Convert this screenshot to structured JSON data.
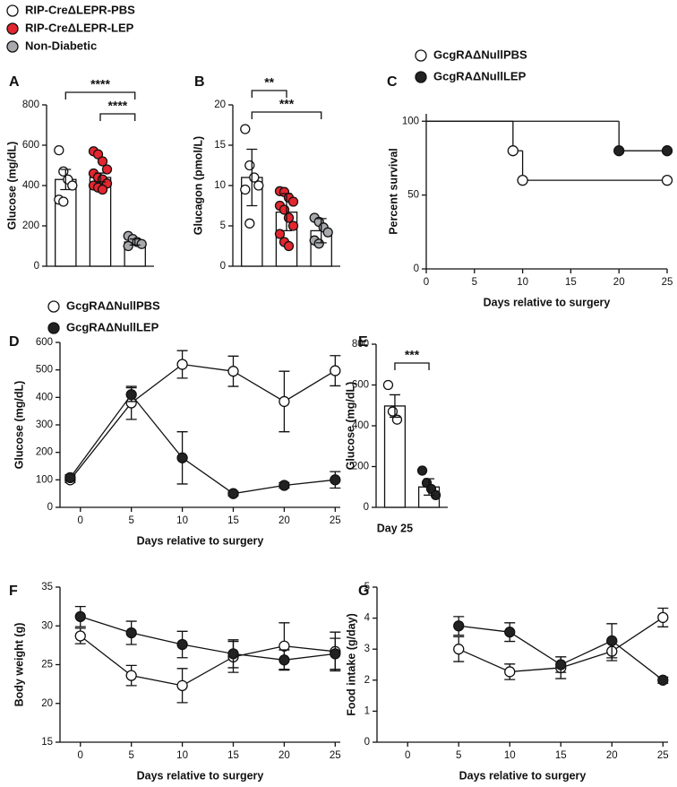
{
  "chart_data": [
    {
      "type": "bar",
      "panel": "A",
      "ylabel": "Glucose (mg/dL)",
      "ylim": [
        0,
        800
      ],
      "yticks": [
        0,
        200,
        400,
        600,
        800
      ],
      "series": [
        {
          "name": "RIP-CreΔLEPR-PBS",
          "color": "#ffffff",
          "values": [
            430
          ],
          "errors": [
            50
          ],
          "points": [
            575,
            470,
            430,
            400,
            330,
            320
          ]
        },
        {
          "name": "RIP-CreΔLEPR-LEP",
          "color": "#e3262f",
          "values": [
            440
          ],
          "errors": [
            22
          ],
          "points": [
            570,
            555,
            520,
            480,
            460,
            440,
            430,
            410,
            400,
            390,
            380
          ]
        },
        {
          "name": "Non-Diabetic",
          "color": "#a7a9ac",
          "values": [
            120
          ],
          "errors": [
            15
          ],
          "points": [
            150,
            135,
            120,
            110,
            100
          ]
        }
      ],
      "annotations": [
        {
          "text": "****",
          "from": 0,
          "to": 2
        },
        {
          "text": "****",
          "from": 1,
          "to": 2
        }
      ]
    },
    {
      "type": "bar",
      "panel": "B",
      "ylabel": "Glucagon (pmol/L)",
      "ylim": [
        0,
        20
      ],
      "yticks": [
        0,
        5,
        10,
        15,
        20
      ],
      "series": [
        {
          "color": "#ffffff",
          "values": [
            11
          ],
          "errors": [
            3.5
          ],
          "points": [
            17,
            12.5,
            11,
            10,
            9.5,
            5.3
          ]
        },
        {
          "color": "#e3262f",
          "values": [
            6.7
          ],
          "errors": [
            2.3
          ],
          "points": [
            9.3,
            9.2,
            8.5,
            8,
            7.5,
            7,
            6,
            5,
            4,
            3,
            2.5
          ]
        },
        {
          "color": "#a7a9ac",
          "values": [
            4.4
          ],
          "errors": [
            1.5
          ],
          "points": [
            6,
            5.5,
            4.8,
            4.2,
            3.2,
            2.8
          ]
        }
      ],
      "annotations": [
        {
          "text": "**",
          "from": 0,
          "to": 1
        },
        {
          "text": "***",
          "from": 0,
          "to": 2
        }
      ]
    },
    {
      "type": "step",
      "panel": "C",
      "xlabel": "Days relative to surgery",
      "ylabel": "Percent survival",
      "xlim": [
        0,
        25
      ],
      "xticks": [
        0,
        5,
        10,
        15,
        20,
        25
      ],
      "ylim": [
        0,
        105
      ],
      "yticks": [
        0,
        50,
        100
      ],
      "series": [
        {
          "name": "GcgRAΔNullPBS",
          "color": "#ffffff",
          "x": [
            0,
            9,
            10,
            25
          ],
          "values": [
            100,
            80,
            60,
            60
          ]
        },
        {
          "name": "GcgRAΔNullLEP",
          "color": "#222222",
          "x": [
            0,
            20,
            25
          ],
          "values": [
            100,
            80,
            80
          ]
        }
      ]
    },
    {
      "type": "line",
      "panel": "D",
      "xlabel": "Days relative to surgery",
      "ylabel": "Glucose (mg/dL)",
      "xlim": [
        -2,
        25.5
      ],
      "xticks": [
        0,
        5,
        10,
        15,
        20,
        25
      ],
      "ylim": [
        0,
        600
      ],
      "yticks": [
        0,
        100,
        200,
        300,
        400,
        500,
        600
      ],
      "series": [
        {
          "name": "GcgRAΔNullPBS",
          "color": "#ffffff",
          "x": [
            -1,
            5,
            10,
            15,
            20,
            25
          ],
          "values": [
            100,
            380,
            520,
            495,
            385,
            497
          ],
          "errors": [
            10,
            60,
            50,
            55,
            110,
            55
          ]
        },
        {
          "name": "GcgRAΔNullLEP",
          "color": "#222222",
          "x": [
            -1,
            5,
            10,
            15,
            20,
            25
          ],
          "values": [
            108,
            410,
            180,
            50,
            80,
            100
          ],
          "errors": [
            10,
            25,
            95,
            8,
            10,
            30
          ]
        }
      ]
    },
    {
      "type": "bar",
      "panel": "E",
      "xlabel": "Day 25",
      "ylabel": "Glucose (mg/dL)",
      "ylim": [
        0,
        800
      ],
      "yticks": [
        0,
        200,
        400,
        600,
        800
      ],
      "series": [
        {
          "color": "#ffffff",
          "values": [
            497
          ],
          "errors": [
            55
          ],
          "points": [
            600,
            470,
            430
          ]
        },
        {
          "color": "#222222",
          "values": [
            100
          ],
          "errors": [
            40
          ],
          "points": [
            180,
            120,
            90,
            60
          ]
        }
      ],
      "annotations": [
        {
          "text": "***",
          "from": 0,
          "to": 1
        }
      ]
    },
    {
      "type": "line",
      "panel": "F",
      "xlabel": "Days relative to surgery",
      "ylabel": "Body weight (g)",
      "xlim": [
        -2,
        25.5
      ],
      "xticks": [
        0,
        5,
        10,
        15,
        20,
        25
      ],
      "ylim": [
        15,
        35
      ],
      "yticks": [
        15,
        20,
        25,
        30,
        35
      ],
      "series": [
        {
          "color": "#ffffff",
          "x": [
            0,
            5,
            10,
            15,
            20,
            25
          ],
          "values": [
            28.7,
            23.6,
            22.3,
            26.0,
            27.4,
            26.7
          ],
          "errors": [
            1.0,
            1.3,
            2.2,
            2.0,
            3.0,
            2.5
          ]
        },
        {
          "color": "#222222",
          "x": [
            0,
            5,
            10,
            15,
            20,
            25
          ],
          "values": [
            31.2,
            29.1,
            27.6,
            26.4,
            25.6,
            26.4
          ],
          "errors": [
            1.3,
            1.5,
            1.7,
            1.8,
            1.3,
            2.0
          ]
        }
      ]
    },
    {
      "type": "line",
      "panel": "G",
      "xlabel": "Days relative to surgery",
      "ylabel": "Food intake (g/day)",
      "xlim": [
        -3,
        25.5
      ],
      "xticks": [
        0,
        5,
        10,
        15,
        20,
        25
      ],
      "ylim": [
        0,
        5
      ],
      "yticks": [
        0,
        1,
        2,
        3,
        4,
        5
      ],
      "series": [
        {
          "color": "#ffffff",
          "x": [
            5,
            10,
            15,
            20,
            25
          ],
          "values": [
            3.0,
            2.27,
            2.4,
            2.93,
            4.02
          ],
          "errors": [
            0.4,
            0.25,
            0.35,
            0.3,
            0.3
          ]
        },
        {
          "color": "#222222",
          "x": [
            5,
            10,
            15,
            20,
            25
          ],
          "values": [
            3.75,
            3.55,
            2.5,
            3.27,
            2.0
          ],
          "errors": [
            0.3,
            0.3,
            0.25,
            0.55,
            0.1
          ]
        }
      ]
    }
  ]
}
